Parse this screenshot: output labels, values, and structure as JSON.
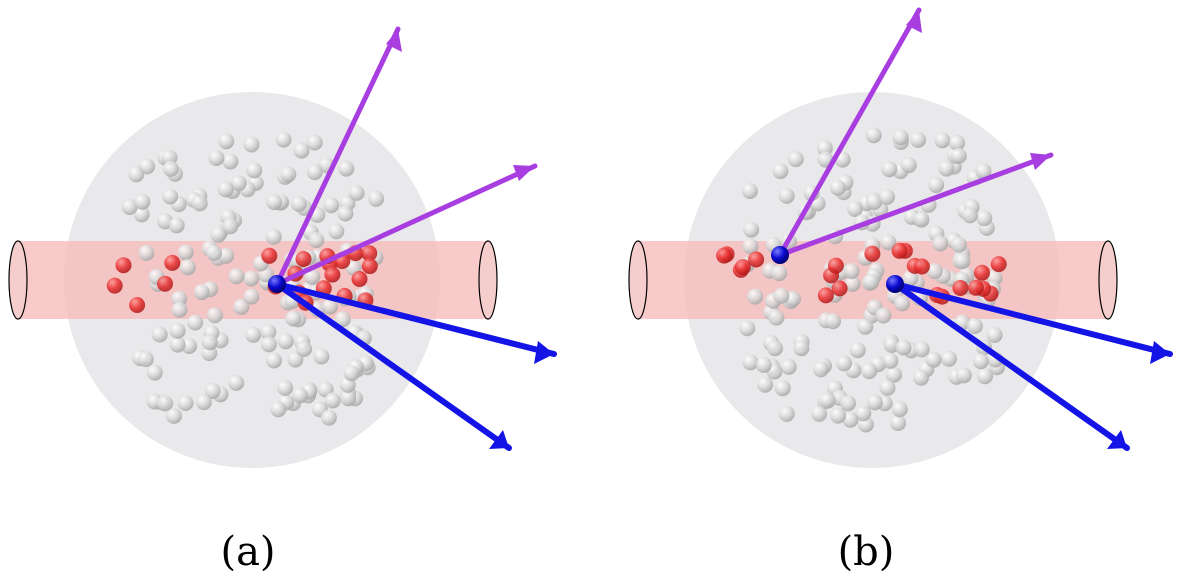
{
  "panels": [
    {
      "id": "a",
      "label": "(a)",
      "vertices": 1,
      "outgoing_arrows": [
        {
          "color": "purple"
        },
        {
          "color": "purple"
        },
        {
          "color": "blue"
        },
        {
          "color": "blue"
        }
      ]
    },
    {
      "id": "b",
      "label": "(b)",
      "vertices": 2,
      "outgoing_arrows": [
        {
          "color": "purple"
        },
        {
          "color": "purple"
        },
        {
          "color": "blue"
        },
        {
          "color": "blue"
        }
      ]
    }
  ],
  "colors": {
    "sphere": "#e9e9ec",
    "tube": "#f7b8b8",
    "tube_edge": "#000000",
    "grey_particle": "#d6d6d6",
    "red_particle": "#e83030",
    "vertex": "#0a0ad0",
    "arrow_purple": "#a83ee0",
    "arrow_blue": "#1414e6"
  }
}
